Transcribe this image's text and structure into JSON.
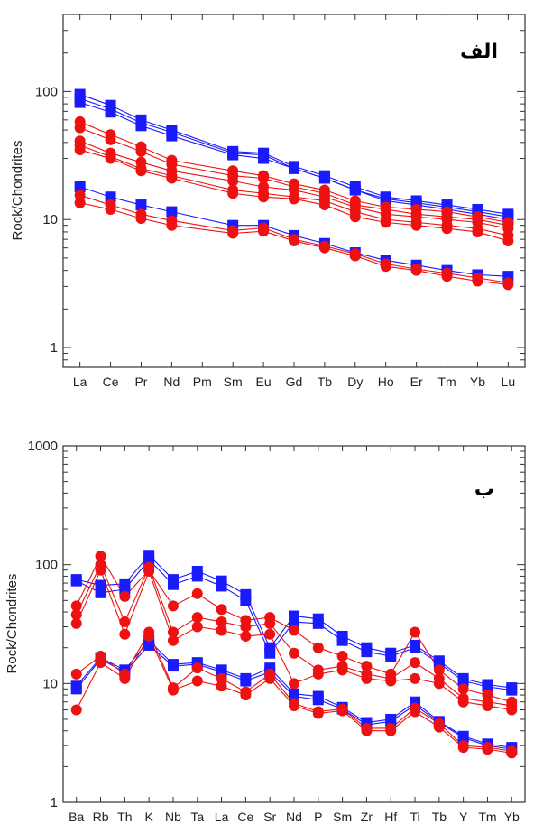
{
  "chart_data": [
    {
      "type": "line",
      "label": "الف",
      "ylabel": "Rock/Chondrites",
      "yscale": "log",
      "ylim": [
        0.7,
        400
      ],
      "yticks": [
        1,
        10,
        100
      ],
      "ytick_labels": [
        "1",
        "10",
        "100"
      ],
      "categories": [
        "La",
        "Ce",
        "Pr",
        "Nd",
        "Pm",
        "Sm",
        "Eu",
        "Gd",
        "Tb",
        "Dy",
        "Ho",
        "Er",
        "Tm",
        "Yb",
        "Lu"
      ],
      "colors": {
        "blue": "#1a1aff",
        "red": "#ee1111"
      },
      "series": [
        {
          "color": "blue",
          "marker": "square",
          "values": [
            95,
            78,
            60,
            50,
            null,
            34,
            33,
            26,
            22,
            18,
            15,
            14,
            13,
            12,
            11
          ]
        },
        {
          "color": "blue",
          "marker": "square",
          "values": [
            88,
            73,
            57,
            48,
            null,
            33,
            32,
            25,
            21,
            17,
            14.5,
            13.5,
            12.5,
            11.5,
            10.5
          ]
        },
        {
          "color": "blue",
          "marker": "square",
          "values": [
            82,
            69,
            54,
            45,
            null,
            32,
            30,
            25,
            21,
            17,
            14,
            13,
            12,
            11,
            10
          ]
        },
        {
          "color": "blue",
          "marker": "square",
          "values": [
            18,
            15,
            13,
            11.5,
            null,
            9,
            9,
            7.5,
            6.5,
            5.5,
            4.8,
            4.4,
            4,
            3.7,
            3.6
          ]
        },
        {
          "color": "red",
          "marker": "circle",
          "values": [
            58,
            46,
            37,
            29,
            null,
            24,
            22,
            19,
            17,
            14,
            12.5,
            12,
            11.5,
            10.5,
            9.5
          ]
        },
        {
          "color": "red",
          "marker": "circle",
          "values": [
            52,
            42,
            34,
            27,
            null,
            22,
            21,
            18,
            16,
            13,
            12,
            11,
            10.5,
            10,
            9
          ]
        },
        {
          "color": "red",
          "marker": "circle",
          "values": [
            41,
            33,
            28,
            24,
            null,
            20,
            18,
            17,
            15,
            12.5,
            11,
            10.5,
            10,
            9.5,
            8.5
          ]
        },
        {
          "color": "red",
          "marker": "circle",
          "values": [
            38,
            31,
            25,
            22,
            null,
            17,
            16,
            15,
            14,
            11.5,
            10,
            9.5,
            9,
            8.5,
            7.5
          ]
        },
        {
          "color": "red",
          "marker": "circle",
          "values": [
            35,
            30,
            24,
            21,
            null,
            16,
            15,
            14.5,
            13,
            10.5,
            9.5,
            9,
            8.5,
            8,
            6.8
          ]
        },
        {
          "color": "red",
          "marker": "circle",
          "values": [
            15.5,
            13,
            11,
            9.8,
            null,
            8.2,
            8.6,
            7,
            6.2,
            5.4,
            4.5,
            4.1,
            3.8,
            3.5,
            3.2
          ]
        },
        {
          "color": "red",
          "marker": "circle",
          "values": [
            13.5,
            12,
            10.2,
            9,
            null,
            7.8,
            8.1,
            6.8,
            6,
            5.2,
            4.3,
            4,
            3.6,
            3.3,
            3.1
          ]
        }
      ]
    },
    {
      "type": "line",
      "label": "ب",
      "ylabel": "Rock/Chondrites",
      "yscale": "log",
      "ylim": [
        1,
        1000
      ],
      "yticks": [
        1,
        10,
        100,
        1000
      ],
      "ytick_labels": [
        "1",
        "10",
        "100",
        "1000"
      ],
      "categories": [
        "Ba",
        "Rb",
        "Th",
        "K",
        "Nb",
        "Ta",
        "La",
        "Ce",
        "Sr",
        "Nd",
        "P",
        "Sm",
        "Zr",
        "Hf",
        "Ti",
        "Tb",
        "Y",
        "Tm",
        "Yb"
      ],
      "colors": {
        "blue": "#1a1aff",
        "red": "#ee1111"
      },
      "series": [
        {
          "color": "blue",
          "marker": "square",
          "values": [
            75,
            67,
            69,
            120,
            75,
            88,
            73,
            56,
            20,
            37,
            35,
            25,
            20,
            18,
            21,
            15.5,
            11,
            9.8,
            9.2
          ]
        },
        {
          "color": "blue",
          "marker": "square",
          "values": [
            73,
            58,
            62,
            110,
            68,
            80,
            66,
            50,
            18,
            33,
            32,
            23,
            18.5,
            17,
            20,
            14.8,
            10.5,
            9.4,
            8.8
          ]
        },
        {
          "color": "blue",
          "marker": "square",
          "values": [
            9.5,
            16.5,
            13,
            23,
            14.5,
            15,
            13,
            11,
            13.5,
            8.2,
            7.8,
            6.3,
            4.7,
            5,
            7,
            4.8,
            3.6,
            3.1,
            2.9
          ]
        },
        {
          "color": "blue",
          "marker": "square",
          "values": [
            9,
            16,
            12.5,
            21,
            14,
            14.5,
            12.5,
            10.5,
            12.5,
            7.8,
            7.3,
            6.1,
            4.5,
            4.8,
            6.6,
            4.7,
            3.5,
            3,
            2.8
          ]
        },
        {
          "color": "red",
          "marker": "circle",
          "values": [
            45,
            118,
            54,
            90,
            45,
            57,
            42,
            34,
            36,
            28,
            20,
            17,
            14,
            12,
            27,
            13,
            9,
            8,
            7
          ]
        },
        {
          "color": "red",
          "marker": "circle",
          "values": [
            38,
            100,
            33,
            95,
            27,
            36,
            33,
            30,
            32,
            18,
            13,
            14,
            12,
            11,
            15,
            11,
            7.5,
            7,
            6.5
          ]
        },
        {
          "color": "red",
          "marker": "circle",
          "values": [
            32,
            90,
            26,
            88,
            23,
            30,
            28,
            25,
            26,
            10,
            12,
            13,
            11,
            10.5,
            11,
            10,
            7,
            6.5,
            6
          ]
        },
        {
          "color": "red",
          "marker": "circle",
          "values": [
            12,
            17,
            12,
            27,
            9.2,
            13.5,
            11,
            8.5,
            12,
            6.8,
            5.8,
            6.1,
            4.2,
            4.2,
            6.2,
            4.6,
            3,
            2.9,
            2.7
          ]
        },
        {
          "color": "red",
          "marker": "circle",
          "values": [
            6,
            15,
            11,
            25,
            8.8,
            10.5,
            9.5,
            8,
            11,
            6.5,
            5.6,
            5.9,
            4,
            4,
            5.8,
            4.3,
            2.9,
            2.8,
            2.6
          ]
        }
      ]
    }
  ]
}
